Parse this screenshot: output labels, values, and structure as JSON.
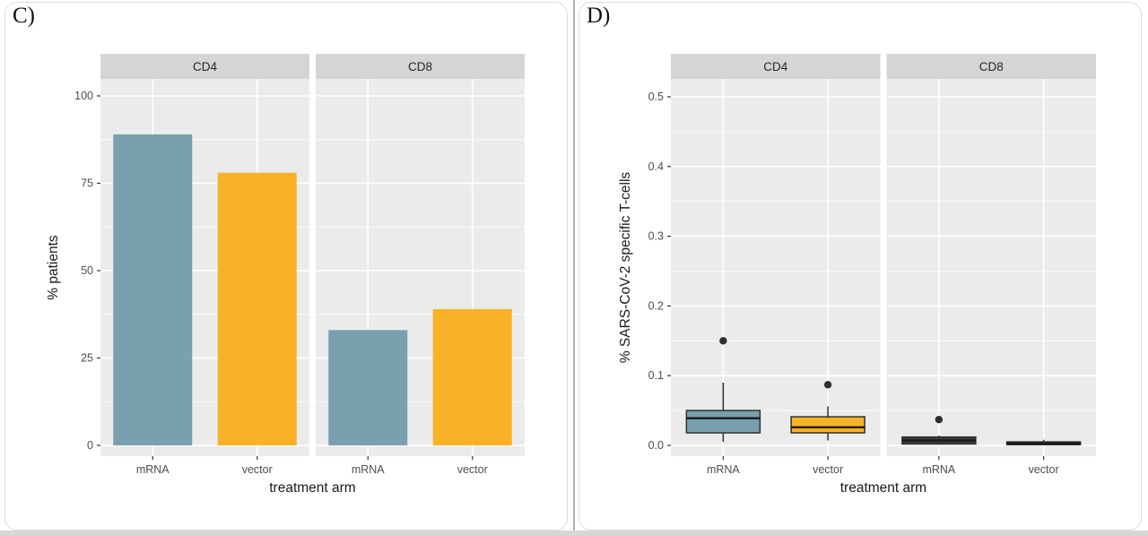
{
  "colors": {
    "facet_strip": "#d5d5d5",
    "panel_background": "#ebebeb",
    "gridline": "#ffffff",
    "axis_text": "#4d4d4d",
    "axis_title_text": "#1a1a1a",
    "facet_text": "#262626",
    "tick_mark": "#333333",
    "box_stroke": "#2f2f2f",
    "outlier": "#2f2f2f",
    "teal": "#7aa0b0",
    "amber": "#f9b227",
    "dark_box": "#3b3b3b"
  },
  "chart_data": [
    {
      "id": "panel-c",
      "panel_label": "C)",
      "type": "bar",
      "facets": [
        "CD4",
        "CD8"
      ],
      "categories": [
        "mRNA",
        "vector"
      ],
      "facet_values": [
        {
          "facet": "CD4",
          "values": [
            89,
            78
          ]
        },
        {
          "facet": "CD8",
          "values": [
            33,
            39
          ]
        }
      ],
      "category_colors": {
        "mRNA": "#7aa0b0",
        "vector": "#f9b227"
      },
      "title": "",
      "xlabel": "treatment arm",
      "ylabel": "% patients",
      "ylim": [
        0,
        105
      ],
      "yticks": [
        0,
        25,
        50,
        75,
        100
      ],
      "ytick_labels": [
        "0",
        "25",
        "50",
        "75",
        "100"
      ],
      "grid": "major-and-minor, white on grey panel",
      "legend": "none"
    },
    {
      "id": "panel-d",
      "panel_label": "D)",
      "type": "boxplot",
      "facets": [
        "CD4",
        "CD8"
      ],
      "categories": [
        "mRNA",
        "vector"
      ],
      "boxes": [
        {
          "facet": "CD4",
          "category": "mRNA",
          "color": "#7aa0b0",
          "whisker_low": 0.005,
          "q1": 0.018,
          "median": 0.039,
          "q3": 0.05,
          "whisker_high": 0.09,
          "outliers": [
            0.15
          ]
        },
        {
          "facet": "CD4",
          "category": "vector",
          "color": "#f9b227",
          "whisker_low": 0.007,
          "q1": 0.018,
          "median": 0.026,
          "q3": 0.041,
          "whisker_high": 0.056,
          "outliers": [
            0.087
          ]
        },
        {
          "facet": "CD8",
          "category": "mRNA",
          "color": "#3b3b3b",
          "whisker_low": 0.001,
          "q1": 0.002,
          "median": 0.007,
          "q3": 0.012,
          "whisker_high": 0.014,
          "outliers": [
            0.037
          ]
        },
        {
          "facet": "CD8",
          "category": "vector",
          "color": "#3b3b3b",
          "whisker_low": 0.0005,
          "q1": 0.001,
          "median": 0.003,
          "q3": 0.005,
          "whisker_high": 0.008,
          "outliers": []
        }
      ],
      "title": "",
      "xlabel": "treatment arm",
      "ylabel": "% SARS-CoV-2 specific T-cells",
      "ylim": [
        0,
        0.525
      ],
      "yticks": [
        0.0,
        0.1,
        0.2,
        0.3,
        0.4,
        0.5
      ],
      "ytick_labels": [
        "0.0",
        "0.1",
        "0.2",
        "0.3",
        "0.4",
        "0.5"
      ],
      "grid": "major-and-minor, white on grey panel",
      "legend": "none"
    }
  ]
}
